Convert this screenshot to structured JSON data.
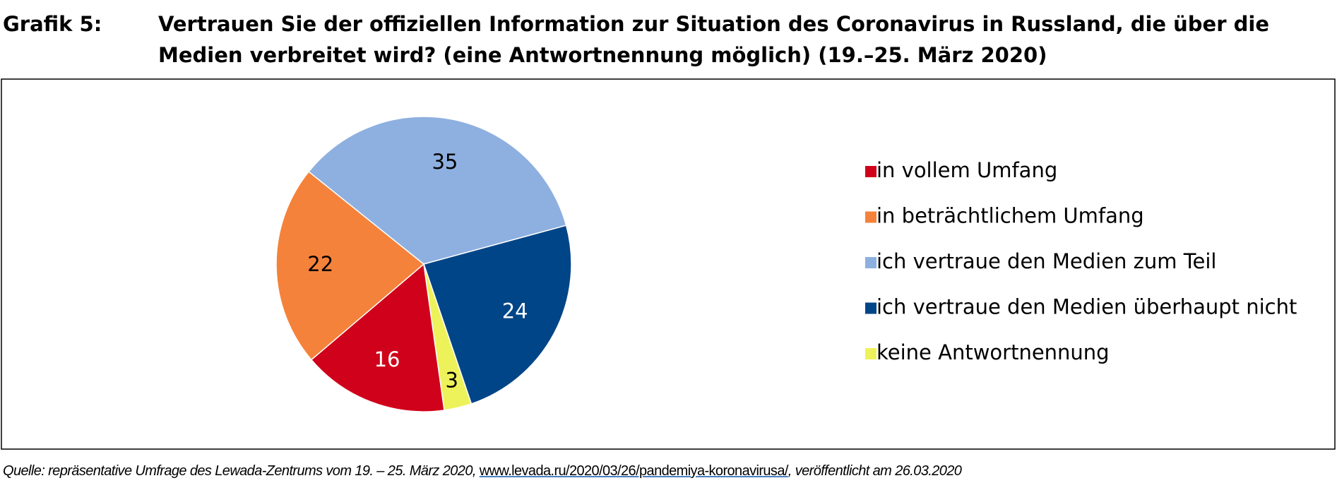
{
  "chart_data": {
    "type": "pie",
    "title_prefix": "Grafik 5:",
    "title": "Vertrauen Sie der offiziellen Information zur Situation des Coronavirus in Russland, die über die Medien verbreitet wird? (eine Antwortnennung möglich) (19.–25. März 2020)",
    "categories": [
      "in vollem Umfang",
      "in beträchtlichem Umfang",
      "ich vertraue den Medien zum Teil",
      "ich vertraue den Medien überhaupt nicht",
      "keine Antwortnennung"
    ],
    "values": [
      16,
      22,
      35,
      24,
      3
    ],
    "colors": [
      "#d0021b",
      "#f5823a",
      "#8eb0e0",
      "#004587",
      "#eef25a"
    ],
    "legend": "right",
    "source": {
      "prefix": "Quelle: repräsentative Umfrage des Lewada-Zentrums vom 19. – 25. März 2020, ",
      "link": "www.levada.ru/2020/03/26/pandemiya-koronavirusa/",
      "suffix": ", veröffentlicht am 26.03.2020"
    }
  }
}
